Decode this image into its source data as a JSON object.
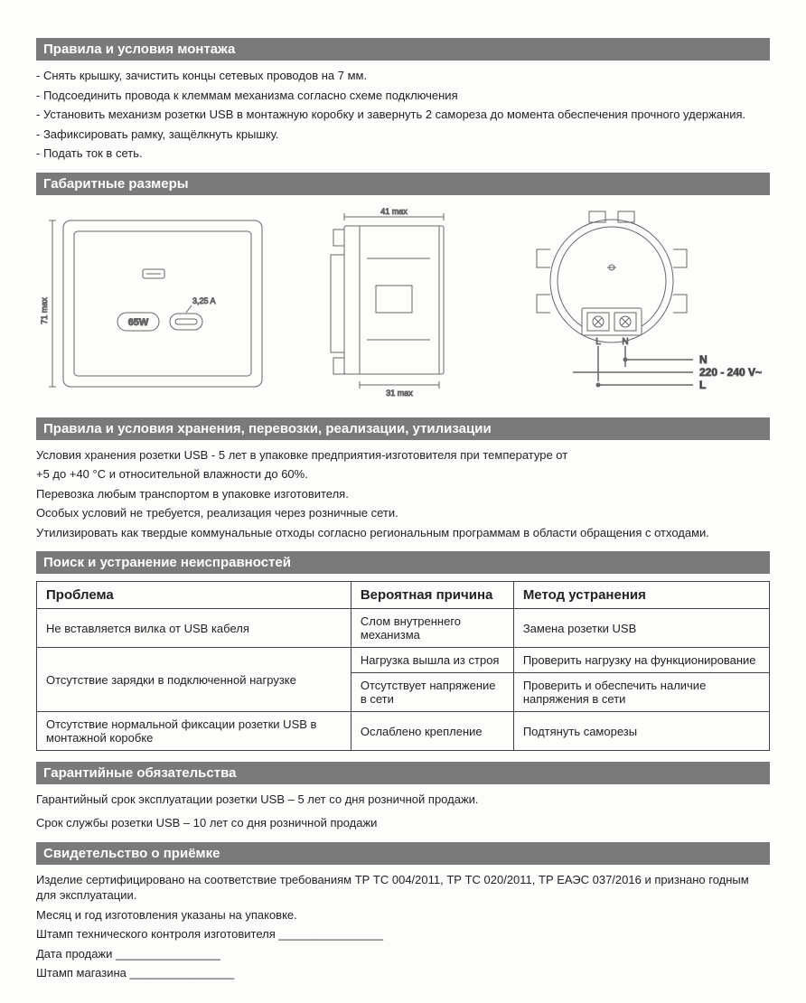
{
  "colors": {
    "header_bg": "#7a7a7a",
    "header_text": "#ffffff",
    "body_text": "#222222",
    "page_bg": "#fdfdfb",
    "table_border": "#444444",
    "diagram_stroke": "#666666",
    "diagram_fill": "#ffffff"
  },
  "sections": {
    "installation": {
      "title": "Правила и условия монтажа",
      "items": [
        "- Снять крышку, зачистить концы сетевых проводов на 7 мм.",
        "- Подсоединить провода к клеммам механизма согласно схеме подключения",
        "- Установить механизм розетки USB в монтажную коробку и завернуть 2 самореза до момента обеспечения прочного удержания.",
        "- Зафиксировать рамку, защёлкнуть крышку.",
        "- Подать ток в сеть."
      ]
    },
    "dimensions": {
      "title": "Габаритные размеры",
      "diagram1": {
        "height_label": "71 max",
        "badge_power": "65W",
        "usb_current": "3,25 A"
      },
      "diagram2": {
        "top_width": "41 max",
        "bottom_width": "31 max"
      },
      "diagram3": {
        "terminal_L": "L",
        "terminal_N": "N",
        "wire_N": "N",
        "wire_L": "L",
        "voltage": "220 - 240 V~"
      }
    },
    "storage": {
      "title": "Правила и условия хранения, перевозки, реализации, утилизации",
      "lines": [
        "Условия хранения розетки USB - 5 лет в упаковке предприятия-изготовителя при температуре от",
        "+5 до +40 °C и относительной влажности до 60%.",
        "Перевозка любым транспортом в упаковке изготовителя.",
        "Особых условий не требуется, реализация через розничные сети.",
        "Утилизировать как твердые коммунальные отходы согласно региональным программам в области обращения с отходами."
      ]
    },
    "troubleshoot": {
      "title": "Поиск и устранение неисправностей",
      "columns": [
        "Проблема",
        "Вероятная причина",
        "Метод устранения"
      ],
      "rows": [
        {
          "problem": "Не вставляется вилка от USB кабеля",
          "cause": "Слом внутреннего механизма",
          "fix": "Замена розетки USB",
          "problem_rowspan": 1
        },
        {
          "problem": "Отсутствие зарядки в подключенной нагрузке",
          "cause": "Нагрузка вышла из строя",
          "fix": "Проверить нагрузку на функционирование",
          "problem_rowspan": 2
        },
        {
          "problem": "",
          "cause": "Отсутствует напряжение в сети",
          "fix": "Проверить и обеспечить наличие напряжения в сети",
          "problem_rowspan": 0
        },
        {
          "problem": "Отсутствие нормальной фиксации розетки USB в монтажной коробке",
          "cause": "Ослаблено крепление",
          "fix": "Подтянуть саморезы",
          "problem_rowspan": 1
        }
      ]
    },
    "warranty": {
      "title": "Гарантийные обязательства",
      "lines": [
        "Гарантийный срок эксплуатации розетки USB – 5 лет со дня розничной продажи.",
        "Срок службы розетки USB – 10 лет со дня розничной продажи"
      ]
    },
    "acceptance": {
      "title": "Свидетельство о приёмке",
      "lines": [
        "Изделие сертифицировано на соответствие требованиям ТР ТС 004/2011, ТР ТС 020/2011, ТР ЕАЭС 037/2016 и признано годным для эксплуатации.",
        "Месяц и год изготовления указаны на упаковке.",
        "Штамп технического контроля изготовителя ________________",
        "Дата продажи ________________",
        "Штамп магазина ________________"
      ]
    }
  }
}
